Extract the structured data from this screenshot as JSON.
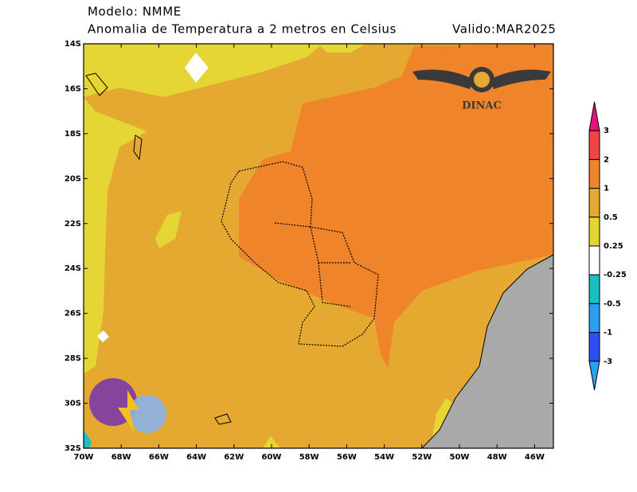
{
  "header": {
    "model": "Modelo: NMME",
    "title": "Anomalia de Temperatura a 2 metros en Celsius",
    "valid": "Valido:MAR2025"
  },
  "map": {
    "lon_ticks": [
      "70W",
      "68W",
      "66W",
      "64W",
      "62W",
      "60W",
      "58W",
      "56W",
      "54W",
      "52W",
      "50W",
      "48W",
      "46W"
    ],
    "lat_ticks": [
      "14S",
      "16S",
      "18S",
      "20S",
      "22S",
      "24S",
      "26S",
      "28S",
      "30S",
      "32S"
    ]
  },
  "colorbar": {
    "labels": [
      "3",
      "2",
      "1",
      "0.5",
      "0.25",
      "-0.25",
      "-0.5",
      "-1",
      "-3"
    ],
    "colors": [
      "#e8107a",
      "#f04545",
      "#ef842b",
      "#e5a830",
      "#e5d535",
      "#ffffff",
      "#18c0c0",
      "#2a9ef0",
      "#2d4ef0",
      "#2aa0f0"
    ]
  },
  "logo": {
    "text": "DINAC"
  }
}
